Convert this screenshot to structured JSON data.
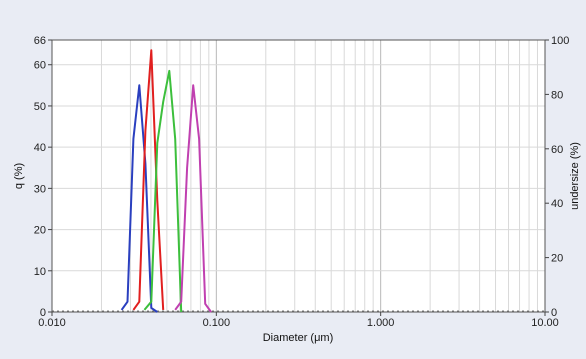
{
  "chart_data": {
    "type": "line",
    "xlabel": "Diameter (μm)",
    "ylabel": "q (%)",
    "y2label": "undersize (%)",
    "x_scale": "log",
    "xlim": [
      0.01,
      10
    ],
    "ylim": [
      0,
      66
    ],
    "y2lim": [
      0,
      100
    ],
    "grid": true,
    "x_ticks": [
      {
        "value": 0.01,
        "label": "0.010"
      },
      {
        "value": 0.1,
        "label": "0.100"
      },
      {
        "value": 1,
        "label": "1.000"
      },
      {
        "value": 10,
        "label": "10.00"
      }
    ],
    "y_ticks": [
      {
        "value": 0,
        "label": "0"
      },
      {
        "value": 10,
        "label": "10"
      },
      {
        "value": 20,
        "label": "20"
      },
      {
        "value": 30,
        "label": "30"
      },
      {
        "value": 40,
        "label": "40"
      },
      {
        "value": 50,
        "label": "50"
      },
      {
        "value": 60,
        "label": "60"
      },
      {
        "value": 66,
        "label": "66"
      }
    ],
    "y2_ticks": [
      {
        "value": 0,
        "label": "0"
      },
      {
        "value": 20,
        "label": "20"
      },
      {
        "value": 40,
        "label": "40"
      },
      {
        "value": 60,
        "label": "60"
      },
      {
        "value": 80,
        "label": "80"
      },
      {
        "value": 100,
        "label": "100"
      }
    ],
    "series": [
      {
        "color": "#2a3fbf",
        "x": [
          0.0265,
          0.0288,
          0.0313,
          0.034,
          0.037,
          0.0402,
          0.0437
        ],
        "y": [
          0.5,
          2.5,
          42,
          55,
          36,
          1,
          0
        ]
      },
      {
        "color": "#e11f1f",
        "x": [
          0.0313,
          0.034,
          0.037,
          0.0402,
          0.0437,
          0.0475
        ],
        "y": [
          0.5,
          2.5,
          44,
          63.5,
          27,
          0.5
        ]
      },
      {
        "color": "#3cbf3c",
        "x": [
          0.0365,
          0.0402,
          0.0437,
          0.0475,
          0.0517,
          0.0562,
          0.0611
        ],
        "y": [
          0.5,
          2.5,
          41,
          51,
          58.5,
          42,
          0
        ]
      },
      {
        "color": "#c040b0",
        "x": [
          0.0562,
          0.0611,
          0.0664,
          0.0723,
          0.0786,
          0.0855,
          0.0929
        ],
        "y": [
          0.5,
          2.5,
          35,
          55,
          42,
          2,
          0
        ]
      }
    ]
  }
}
